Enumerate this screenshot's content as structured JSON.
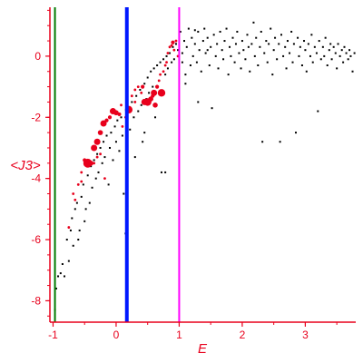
{
  "chart_data": {
    "type": "scatter",
    "title": "",
    "xlabel": "E",
    "ylabel": "<J3>",
    "xlim": [
      -1.05,
      3.8
    ],
    "ylim": [
      -8.7,
      1.6
    ],
    "x_ticks": [
      -1,
      0,
      1,
      2,
      3
    ],
    "y_ticks": [
      0,
      -2,
      -4,
      -6,
      -8
    ],
    "grid": false,
    "legend": "none",
    "colors": {
      "axes": "#e8001c",
      "black_points": "#000000",
      "red_points": "#e8001c",
      "line_green": "#007a00",
      "line_blue": "#0018ff",
      "line_magenta": "#ff00ff"
    },
    "vertical_lines": [
      {
        "x": -0.97,
        "color": "#007a00",
        "width": 2
      },
      {
        "x": 0.17,
        "color": "#0018ff",
        "width": 4
      },
      {
        "x": 1.0,
        "color": "#ff00ff",
        "width": 2
      }
    ],
    "series": [
      {
        "marker": "black-dot",
        "points": [
          [
            -0.97,
            -8.3
          ],
          [
            -0.95,
            -7.6
          ],
          [
            -0.92,
            -7.2
          ],
          [
            -0.88,
            -7.1
          ],
          [
            -0.85,
            -6.8
          ],
          [
            -0.82,
            -7.2
          ],
          [
            -0.78,
            -6.0
          ],
          [
            -0.75,
            -6.7
          ],
          [
            -0.72,
            -5.7
          ],
          [
            -0.7,
            -5.3
          ],
          [
            -0.68,
            -6.2
          ],
          [
            -0.65,
            -5.0
          ],
          [
            -0.62,
            -4.8
          ],
          [
            -0.6,
            -6.0
          ],
          [
            -0.58,
            -5.7
          ],
          [
            -0.55,
            -4.6
          ],
          [
            -0.52,
            -4.2
          ],
          [
            -0.5,
            -5.4
          ],
          [
            -0.48,
            -5.0
          ],
          [
            -0.45,
            -3.9
          ],
          [
            -0.42,
            -4.8
          ],
          [
            -0.4,
            -3.6
          ],
          [
            -0.38,
            -4.3
          ],
          [
            -0.35,
            -3.4
          ],
          [
            -0.32,
            -4.0
          ],
          [
            -0.3,
            -3.2
          ],
          [
            -0.28,
            -3.8
          ],
          [
            -0.25,
            -3.0
          ],
          [
            -0.22,
            -3.5
          ],
          [
            -0.2,
            -2.8
          ],
          [
            -0.18,
            -3.3
          ],
          [
            -0.15,
            -2.6
          ],
          [
            -0.12,
            -4.2
          ],
          [
            -0.1,
            -3.0
          ],
          [
            -0.08,
            -2.5
          ],
          [
            -0.05,
            -3.4
          ],
          [
            -0.02,
            -2.3
          ],
          [
            0.0,
            -2.8
          ],
          [
            0.02,
            -2.1
          ],
          [
            0.05,
            -3.1
          ],
          [
            0.08,
            -2.0
          ],
          [
            0.1,
            -2.6
          ],
          [
            0.12,
            -4.5
          ],
          [
            0.15,
            -5.8
          ],
          [
            0.2,
            -1.7
          ],
          [
            0.22,
            -2.4
          ],
          [
            0.25,
            -1.5
          ],
          [
            0.28,
            -2.0
          ],
          [
            0.3,
            -3.3
          ],
          [
            0.32,
            -1.3
          ],
          [
            0.35,
            -1.8
          ],
          [
            0.38,
            -1.1
          ],
          [
            0.4,
            -1.6
          ],
          [
            0.42,
            -2.8
          ],
          [
            0.45,
            -0.9
          ],
          [
            0.48,
            -1.4
          ],
          [
            0.5,
            -0.7
          ],
          [
            0.52,
            -1.2
          ],
          [
            0.55,
            -0.5
          ],
          [
            0.58,
            -1.0
          ],
          [
            0.6,
            -0.4
          ],
          [
            0.62,
            -2.0
          ],
          [
            0.65,
            -0.3
          ],
          [
            0.68,
            -0.8
          ],
          [
            0.7,
            -0.2
          ],
          [
            0.72,
            -3.8
          ],
          [
            0.75,
            -0.1
          ],
          [
            0.78,
            -0.6
          ],
          [
            0.8,
            0.0
          ],
          [
            0.82,
            -0.4
          ],
          [
            0.85,
            0.1
          ],
          [
            0.88,
            -0.2
          ],
          [
            0.9,
            0.3
          ],
          [
            0.92,
            -0.1
          ],
          [
            0.95,
            0.4
          ],
          [
            0.98,
            0.2
          ],
          [
            1.02,
            0.8
          ],
          [
            1.05,
            0.1
          ],
          [
            1.08,
            0.5
          ],
          [
            1.1,
            -0.6
          ],
          [
            1.12,
            0.3
          ],
          [
            1.15,
            0.9
          ],
          [
            1.18,
            -0.3
          ],
          [
            1.2,
            0.6
          ],
          [
            1.22,
            0.0
          ],
          [
            1.25,
            0.4
          ],
          [
            1.28,
            -0.2
          ],
          [
            1.3,
            0.8
          ],
          [
            1.32,
            0.2
          ],
          [
            1.35,
            -0.5
          ],
          [
            1.38,
            0.5
          ],
          [
            1.4,
            0.9
          ],
          [
            1.42,
            0.1
          ],
          [
            1.45,
            0.6
          ],
          [
            1.48,
            -0.3
          ],
          [
            1.5,
            0.3
          ],
          [
            1.52,
            -1.7
          ],
          [
            1.55,
            0.7
          ],
          [
            1.58,
            0.0
          ],
          [
            1.6,
            0.4
          ],
          [
            1.62,
            -0.4
          ],
          [
            1.65,
            0.8
          ],
          [
            1.68,
            0.2
          ],
          [
            1.7,
            -0.1
          ],
          [
            1.72,
            0.5
          ],
          [
            1.75,
            0.9
          ],
          [
            1.78,
            -0.6
          ],
          [
            1.8,
            0.3
          ],
          [
            1.82,
            0.0
          ],
          [
            1.85,
            0.6
          ],
          [
            1.88,
            -0.2
          ],
          [
            1.9,
            0.4
          ],
          [
            1.92,
            0.8
          ],
          [
            1.95,
            0.1
          ],
          [
            1.98,
            -0.4
          ],
          [
            2.0,
            0.5
          ],
          [
            2.02,
            0.2
          ],
          [
            2.05,
            -0.1
          ],
          [
            2.08,
            0.7
          ],
          [
            2.1,
            0.3
          ],
          [
            2.12,
            -0.5
          ],
          [
            2.15,
            0.4
          ],
          [
            2.18,
            1.1
          ],
          [
            2.2,
            0.0
          ],
          [
            2.22,
            0.6
          ],
          [
            2.25,
            -0.3
          ],
          [
            2.28,
            0.3
          ],
          [
            2.3,
            0.8
          ],
          [
            2.32,
            -2.8
          ],
          [
            2.35,
            0.1
          ],
          [
            2.38,
            0.5
          ],
          [
            2.4,
            -0.2
          ],
          [
            2.42,
            0.4
          ],
          [
            2.45,
            0.9
          ],
          [
            2.48,
            -0.6
          ],
          [
            2.5,
            0.2
          ],
          [
            2.52,
            0.6
          ],
          [
            2.55,
            -0.1
          ],
          [
            2.58,
            0.4
          ],
          [
            2.6,
            -2.8
          ],
          [
            2.62,
            0.7
          ],
          [
            2.65,
            0.0
          ],
          [
            2.68,
            0.3
          ],
          [
            2.7,
            -0.4
          ],
          [
            2.72,
            0.5
          ],
          [
            2.75,
            0.1
          ],
          [
            2.78,
            0.8
          ],
          [
            2.8,
            -0.2
          ],
          [
            2.82,
            0.4
          ],
          [
            2.85,
            -2.5
          ],
          [
            2.88,
            0.6
          ],
          [
            2.9,
            0.0
          ],
          [
            2.92,
            0.3
          ],
          [
            2.95,
            -0.3
          ],
          [
            2.98,
            0.5
          ],
          [
            3.0,
            0.2
          ],
          [
            3.02,
            -0.5
          ],
          [
            3.05,
            0.4
          ],
          [
            3.08,
            0.0
          ],
          [
            3.1,
            0.7
          ],
          [
            3.12,
            -0.2
          ],
          [
            3.15,
            0.3
          ],
          [
            3.18,
            0.1
          ],
          [
            3.2,
            -1.8
          ],
          [
            3.22,
            0.5
          ],
          [
            3.25,
            -0.1
          ],
          [
            3.28,
            0.3
          ],
          [
            3.3,
            0.0
          ],
          [
            3.32,
            0.6
          ],
          [
            3.35,
            -0.3
          ],
          [
            3.38,
            0.2
          ],
          [
            3.4,
            0.4
          ],
          [
            3.42,
            -0.1
          ],
          [
            3.45,
            0.3
          ],
          [
            3.48,
            0.1
          ],
          [
            3.5,
            -0.4
          ],
          [
            3.52,
            0.4
          ],
          [
            3.55,
            0.0
          ],
          [
            3.58,
            0.2
          ],
          [
            3.6,
            -0.2
          ],
          [
            3.62,
            0.3
          ],
          [
            3.65,
            0.1
          ],
          [
            3.68,
            -0.1
          ],
          [
            3.7,
            0.2
          ],
          [
            3.72,
            0.0
          ],
          [
            3.75,
            -0.5
          ],
          [
            3.78,
            0.1
          ],
          [
            0.78,
            -3.8
          ],
          [
            0.45,
            -2.5
          ],
          [
            1.1,
            -0.9
          ],
          [
            1.3,
            -1.5
          ],
          [
            1.05,
            -0.2
          ],
          [
            1.25,
            0.85
          ],
          [
            1.45,
            0.2
          ]
        ]
      },
      {
        "marker": "red-dot",
        "points": [
          [
            -0.65,
            -4.7,
            2
          ],
          [
            -0.6,
            -4.2,
            2
          ],
          [
            -0.55,
            -3.8,
            2
          ],
          [
            -0.5,
            -3.4,
            3
          ],
          [
            -0.45,
            -3.5,
            7
          ],
          [
            -0.4,
            -3.5,
            4
          ],
          [
            -0.35,
            -3.0,
            5
          ],
          [
            -0.3,
            -2.8,
            5
          ],
          [
            -0.25,
            -2.5,
            4
          ],
          [
            -0.2,
            -2.2,
            5
          ],
          [
            -0.18,
            -4.0,
            2
          ],
          [
            -0.15,
            -2.1,
            3
          ],
          [
            -0.1,
            -2.0,
            3
          ],
          [
            -0.05,
            -1.8,
            5
          ],
          [
            0.0,
            -1.85,
            4
          ],
          [
            0.05,
            -1.9,
            3
          ],
          [
            0.08,
            -1.6,
            2
          ],
          [
            0.1,
            -2.3,
            2
          ],
          [
            0.15,
            -2.0,
            2
          ],
          [
            0.2,
            -1.75,
            6
          ],
          [
            0.25,
            -1.3,
            2
          ],
          [
            0.3,
            -1.5,
            2
          ],
          [
            0.35,
            -1.0,
            2
          ],
          [
            0.4,
            -1.2,
            2
          ],
          [
            0.42,
            -1.0,
            3
          ],
          [
            0.45,
            -1.5,
            5
          ],
          [
            0.5,
            -1.5,
            6
          ],
          [
            0.55,
            -1.4,
            4
          ],
          [
            0.58,
            -1.3,
            3
          ],
          [
            0.6,
            -1.2,
            5
          ],
          [
            0.62,
            -1.6,
            4
          ],
          [
            0.65,
            -1.0,
            3
          ],
          [
            0.68,
            -0.8,
            2
          ],
          [
            0.7,
            -0.6,
            2
          ],
          [
            0.72,
            -1.2,
            6
          ],
          [
            0.75,
            -0.5,
            2
          ],
          [
            0.78,
            -0.3,
            2
          ],
          [
            0.8,
            -0.2,
            2
          ],
          [
            0.82,
            0.1,
            2
          ],
          [
            0.85,
            0.3,
            2
          ],
          [
            0.88,
            0.35,
            2
          ],
          [
            0.9,
            0.45,
            3
          ],
          [
            0.92,
            0.2,
            2
          ],
          [
            0.95,
            0.5,
            2
          ],
          [
            0.98,
            0.0,
            2
          ],
          [
            -0.75,
            -5.6,
            2
          ],
          [
            -0.68,
            -4.5,
            2
          ],
          [
            -0.55,
            -4.1,
            2
          ],
          [
            -0.25,
            -3.2,
            2
          ],
          [
            0.3,
            -1.1,
            2
          ],
          [
            -0.35,
            -3.5,
            2
          ],
          [
            -0.3,
            -3.3,
            2
          ]
        ]
      }
    ]
  }
}
